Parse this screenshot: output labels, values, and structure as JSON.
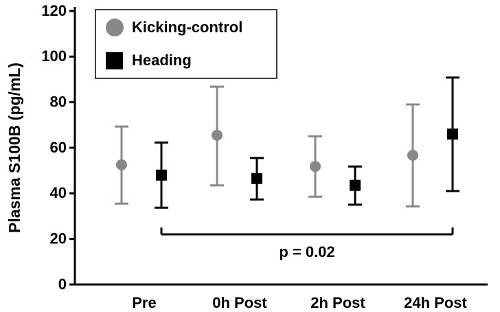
{
  "chart_data": {
    "type": "scatter",
    "ylabel": "Plasma S100B (pg/mL)",
    "xlabel": "",
    "title": "",
    "ylim": [
      0,
      120
    ],
    "yticks": [
      0,
      20,
      40,
      60,
      80,
      100,
      120
    ],
    "categories": [
      "Pre",
      "0h Post",
      "2h Post",
      "24h Post"
    ],
    "series": [
      {
        "name": "Kicking-control",
        "color": "#888888",
        "marker": "circle",
        "values": [
          52.5,
          65.5,
          51.8,
          56.7
        ],
        "upper": [
          69.3,
          86.8,
          65.0,
          79.0
        ],
        "lower": [
          35.5,
          43.5,
          38.5,
          34.3
        ]
      },
      {
        "name": "Heading",
        "color": "#000000",
        "marker": "square",
        "values": [
          48.0,
          46.5,
          43.5,
          66.0
        ],
        "upper": [
          62.3,
          55.5,
          51.8,
          90.8
        ],
        "lower": [
          33.7,
          37.3,
          35.0,
          41.0
        ]
      }
    ],
    "legend_position": "top-left",
    "grid": false,
    "annotation": {
      "text": "p = 0.02",
      "from_category": "Pre",
      "to_category": "24h Post",
      "series": "Heading",
      "bracket_y": 22
    }
  }
}
